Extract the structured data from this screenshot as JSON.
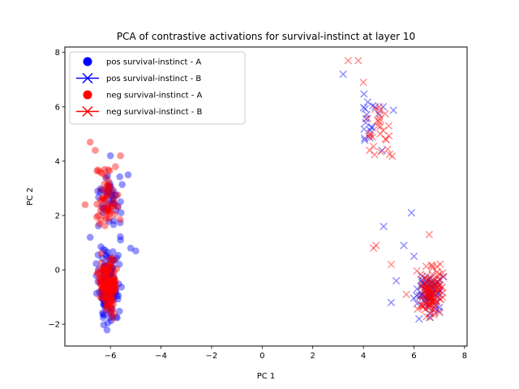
{
  "chart_data": {
    "type": "scatter",
    "title": "PCA of contrastive activations for survival-instinct at layer 10",
    "xlabel": "PC 1",
    "ylabel": "PC 2",
    "xlim": [
      -7.8,
      8.1
    ],
    "ylim": [
      -2.8,
      8.2
    ],
    "xticks": [
      -6,
      -4,
      -2,
      0,
      2,
      4,
      6,
      8
    ],
    "yticks": [
      -2,
      0,
      2,
      4,
      6,
      8
    ],
    "grid": false,
    "legend_position": "top-left",
    "series": [
      {
        "name": "pos survival-instinct - A",
        "color": "#0000ff",
        "marker": "circle",
        "clusters": [
          {
            "x_range": [
              -6.7,
              -5.5
            ],
            "y_range": [
              -2.3,
              1.2
            ],
            "n": 160
          },
          {
            "x_range": [
              -6.8,
              -5.2
            ],
            "y_range": [
              1.0,
              4.2
            ],
            "n": 45
          }
        ],
        "points": [
          [
            -5.3,
            3.5
          ],
          [
            -5.2,
            0.8
          ],
          [
            -5.0,
            0.7
          ],
          [
            -6.0,
            4.2
          ],
          [
            -6.5,
            2.9
          ],
          [
            -6.3,
            2.1
          ],
          [
            -6.8,
            1.2
          ],
          [
            -5.6,
            1.1
          ]
        ]
      },
      {
        "name": "pos survival-instinct - B",
        "color": "#0000ff",
        "marker": "x",
        "clusters": [
          {
            "x_range": [
              3.4,
              5.4
            ],
            "y_range": [
              4.1,
              7.1
            ],
            "n": 20
          },
          {
            "x_range": [
              5.9,
              7.3
            ],
            "y_range": [
              -2.1,
              0.4
            ],
            "n": 60
          }
        ],
        "points": [
          [
            3.2,
            7.2
          ],
          [
            5.9,
            2.1
          ],
          [
            4.8,
            1.6
          ],
          [
            5.6,
            0.9
          ],
          [
            6.0,
            0.5
          ],
          [
            5.3,
            -0.4
          ],
          [
            5.1,
            -1.2
          ],
          [
            6.2,
            -1.8
          ]
        ]
      },
      {
        "name": "neg survival-instinct - A",
        "color": "#ff0000",
        "marker": "circle",
        "clusters": [
          {
            "x_range": [
              -6.6,
              -5.6
            ],
            "y_range": [
              -2.0,
              0.8
            ],
            "n": 130
          },
          {
            "x_range": [
              -6.9,
              -5.5
            ],
            "y_range": [
              0.9,
              4.1
            ],
            "n": 55
          }
        ],
        "points": [
          [
            -6.8,
            4.7
          ],
          [
            -6.6,
            4.4
          ],
          [
            -5.6,
            4.2
          ],
          [
            -7.0,
            2.4
          ],
          [
            -6.4,
            3.6
          ],
          [
            -5.8,
            3.8
          ]
        ]
      },
      {
        "name": "neg survival-instinct - B",
        "color": "#ff0000",
        "marker": "x",
        "clusters": [
          {
            "x_range": [
              3.8,
              5.5
            ],
            "y_range": [
              3.4,
              6.8
            ],
            "n": 28
          },
          {
            "x_range": [
              6.0,
              7.4
            ],
            "y_range": [
              -2.3,
              0.6
            ],
            "n": 110
          }
        ],
        "points": [
          [
            3.4,
            7.7
          ],
          [
            3.8,
            7.7
          ],
          [
            4.5,
            0.9
          ],
          [
            4.4,
            0.8
          ],
          [
            5.1,
            0.2
          ],
          [
            6.6,
            1.3
          ],
          [
            5.7,
            -0.9
          ],
          [
            4.0,
            6.9
          ]
        ]
      }
    ]
  }
}
